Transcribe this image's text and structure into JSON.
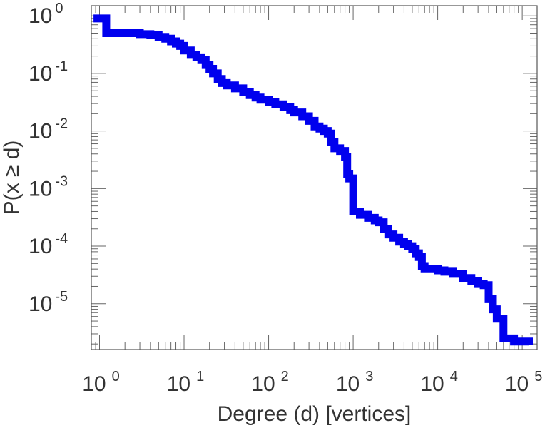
{
  "chart_data": {
    "type": "line",
    "step": true,
    "xlabel": "Degree (d) [vertices]",
    "ylabel": "P(x ≥ d)",
    "xscale": "log",
    "yscale": "log",
    "xlim": [
      0.8,
      150000
    ],
    "ylim": [
      1.6e-06,
      1.5
    ],
    "grid": false,
    "x_ticks": [
      {
        "base": "10",
        "exp": "0",
        "value": 1
      },
      {
        "base": "10",
        "exp": "1",
        "value": 10
      },
      {
        "base": "10",
        "exp": "2",
        "value": 100
      },
      {
        "base": "10",
        "exp": "3",
        "value": 1000
      },
      {
        "base": "10",
        "exp": "4",
        "value": 10000
      },
      {
        "base": "10",
        "exp": "5",
        "value": 100000
      }
    ],
    "y_ticks": [
      {
        "base": "10",
        "exp": "0",
        "value": 1
      },
      {
        "base": "10",
        "exp": "-1",
        "value": 0.1
      },
      {
        "base": "10",
        "exp": "-2",
        "value": 0.01
      },
      {
        "base": "10",
        "exp": "-3",
        "value": 0.001
      },
      {
        "base": "10",
        "exp": "-4",
        "value": 0.0001
      },
      {
        "base": "10",
        "exp": "-5",
        "value": 1e-05
      }
    ],
    "series": [
      {
        "color": "#0000ee",
        "x": [
          0.85,
          1,
          1.2,
          2,
          3,
          4,
          5,
          6,
          7,
          8,
          9,
          10,
          12,
          14,
          16,
          18,
          20,
          22,
          25,
          28,
          32,
          40,
          50,
          60,
          70,
          80,
          100,
          120,
          150,
          180,
          200,
          250,
          300,
          350,
          400,
          450,
          500,
          550,
          600,
          700,
          800,
          850,
          900,
          1000,
          1200,
          1500,
          1800,
          2000,
          2300,
          2600,
          3000,
          3500,
          4000,
          4500,
          5000,
          5500,
          6000,
          6500,
          7000,
          8000,
          10000,
          12000,
          15000,
          20000,
          25000,
          30000,
          35000,
          40000,
          45000,
          50000,
          60000,
          80000,
          120000
        ],
        "y": [
          0.9,
          0.9,
          0.5,
          0.5,
          0.48,
          0.46,
          0.43,
          0.4,
          0.36,
          0.33,
          0.3,
          0.25,
          0.21,
          0.19,
          0.17,
          0.14,
          0.12,
          0.1,
          0.08,
          0.068,
          0.062,
          0.055,
          0.048,
          0.042,
          0.038,
          0.035,
          0.032,
          0.029,
          0.026,
          0.023,
          0.021,
          0.018,
          0.015,
          0.012,
          0.011,
          0.01,
          0.009,
          0.0065,
          0.005,
          0.0045,
          0.0035,
          0.0018,
          0.0015,
          0.0004,
          0.00035,
          0.00031,
          0.00028,
          0.00026,
          0.0002,
          0.00016,
          0.00014,
          0.00012,
          0.00011,
          0.0001,
          9e-05,
          7.5e-05,
          6.5e-05,
          4.5e-05,
          4e-05,
          4e-05,
          3.8e-05,
          3.6e-05,
          3.3e-05,
          2.8e-05,
          2.5e-05,
          2.2e-05,
          2.1e-05,
          1.2e-05,
          8e-06,
          5.5e-06,
          2.5e-06,
          2.2e-06,
          1.9e-06
        ]
      }
    ]
  }
}
